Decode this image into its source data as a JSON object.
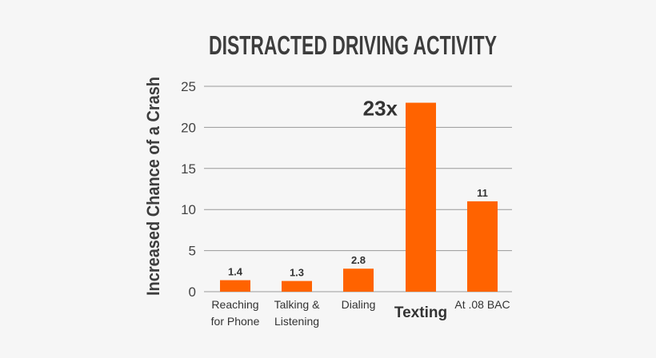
{
  "chart_data": {
    "type": "bar",
    "title": "DISTRACTED DRIVING ACTIVITY",
    "xlabel": "",
    "ylabel": "Increased Chance of a Crash",
    "ylim": [
      0,
      25
    ],
    "yticks": [
      0,
      5,
      10,
      15,
      20,
      25
    ],
    "grid": true,
    "categories": [
      [
        "Reaching",
        "for Phone"
      ],
      [
        "Talking &",
        "Listening"
      ],
      [
        "Dialing"
      ],
      [
        "Texting"
      ],
      [
        "At .08 BAC"
      ]
    ],
    "values": [
      1.4,
      1.3,
      2.8,
      23,
      11
    ],
    "data_labels": [
      "1.4",
      "1.3",
      "2.8",
      "23x",
      "11"
    ],
    "highlight_index": 3,
    "bar_color": "#ff6300",
    "grid_color": "#999999"
  }
}
